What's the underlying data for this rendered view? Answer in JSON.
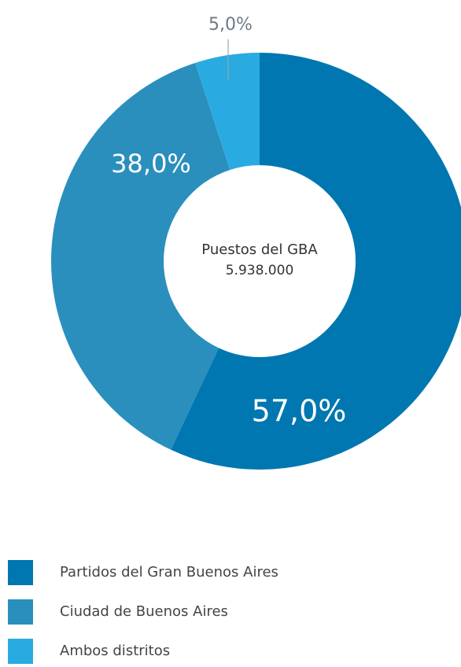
{
  "chart_data": {
    "type": "pie",
    "center_title": "Puestos del GBA",
    "center_value": "5.938.000",
    "categories": [
      "Partidos del Gran Buenos Aires",
      "Ciudad de Buenos Aires",
      "Ambos distritos"
    ],
    "values": [
      57,
      38,
      5
    ],
    "value_labels": [
      "57,0%",
      "38,0%",
      "5,0%"
    ],
    "colors": [
      "#0077b0",
      "#2a8fbd",
      "#29abe2"
    ],
    "legend": "bottom-left"
  }
}
